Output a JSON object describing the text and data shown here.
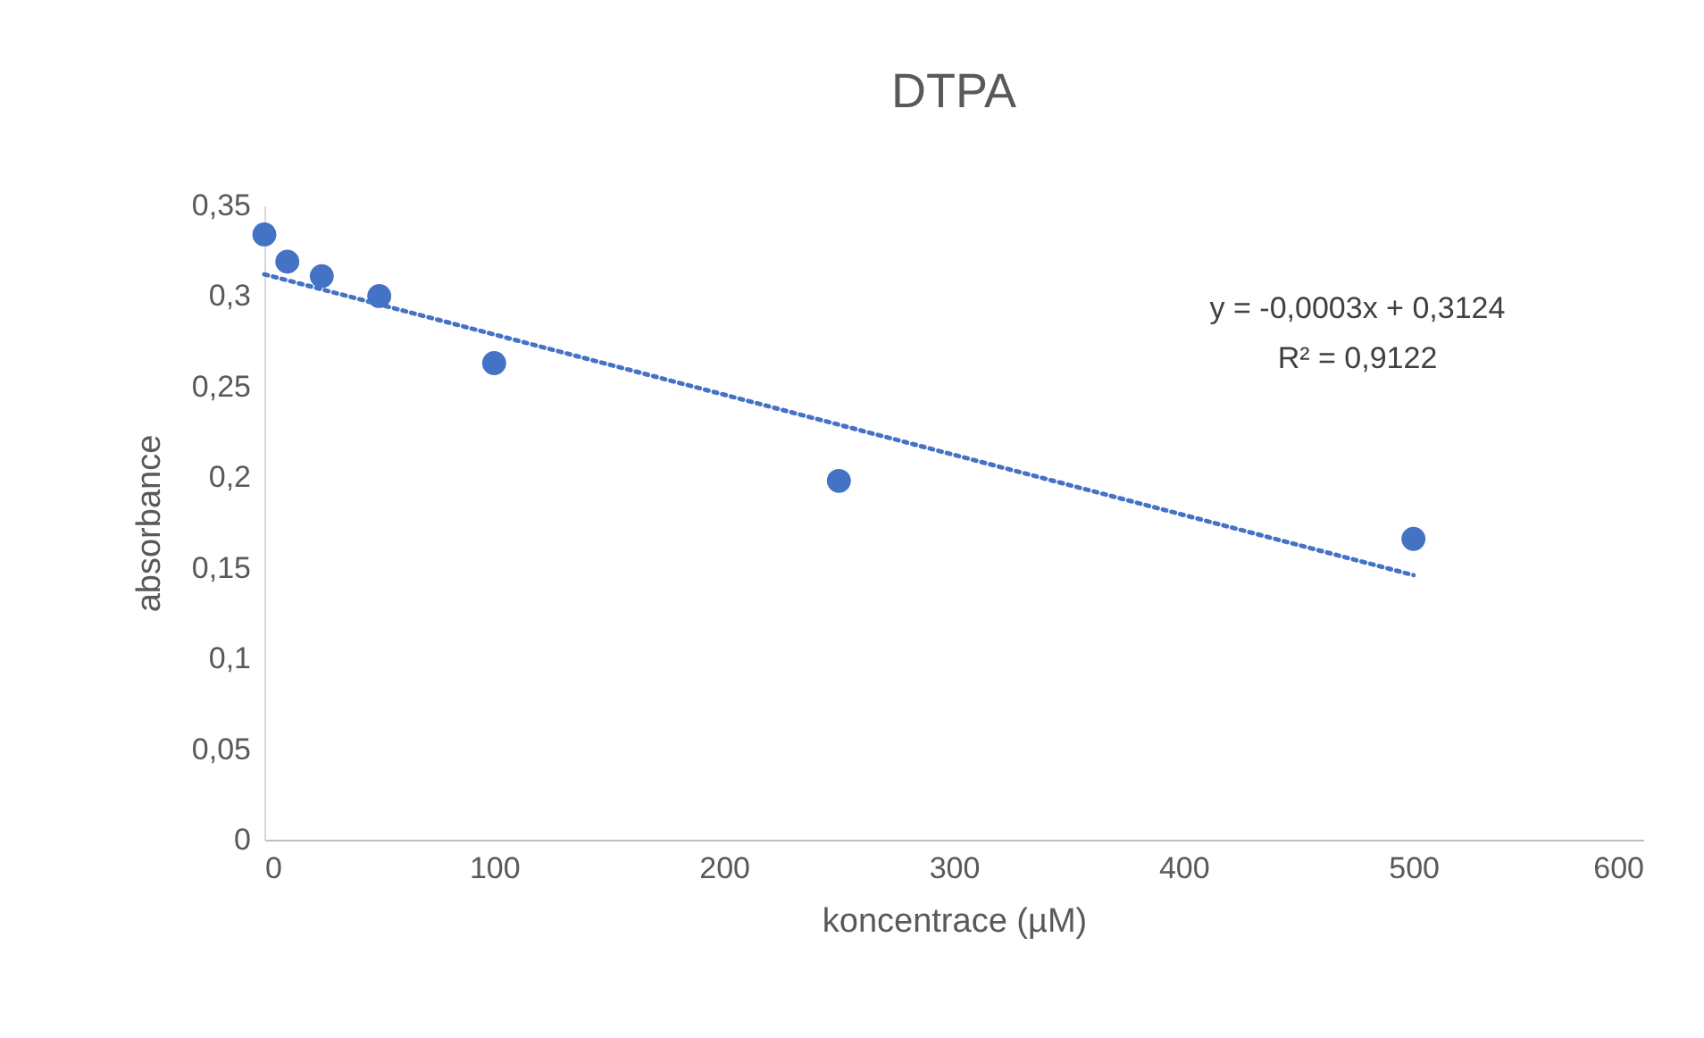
{
  "chart_data": {
    "type": "scatter",
    "title": "DTPA",
    "xlabel": "koncentrace (µM)",
    "ylabel": "absorbance",
    "x": [
      0,
      10,
      25,
      50,
      100,
      250,
      500
    ],
    "series": [
      {
        "color": "#4472c4",
        "values": [
          0.334,
          0.319,
          0.311,
          0.3,
          0.263,
          0.198,
          0.166
        ]
      },
      {
        "type": "line",
        "color": "#4472c4",
        "line_style": "dotted",
        "marker": "none",
        "x": [
          0,
          500
        ],
        "values": [
          0.312,
          0.146
        ]
      }
    ],
    "marker": "circle",
    "xlim": [
      0,
      600
    ],
    "xticks": [
      0,
      100,
      200,
      300,
      400,
      500,
      600
    ],
    "ylim": [
      0,
      0.35
    ],
    "yticks": [
      0,
      {
        "value": 0.05,
        "label": "0,05"
      },
      {
        "value": 0.1,
        "label": "0,1"
      },
      {
        "value": 0.15,
        "label": "0,15"
      },
      {
        "value": 0.2,
        "label": "0,2"
      },
      {
        "value": 0.25,
        "label": "0,25"
      },
      {
        "value": 0.3,
        "label": "0,3"
      },
      {
        "value": 0.35,
        "label": "0,35"
      }
    ],
    "grid": false,
    "annotations": [
      "y = -0,0003x + 0,3124",
      "R² = 0,9122"
    ]
  }
}
